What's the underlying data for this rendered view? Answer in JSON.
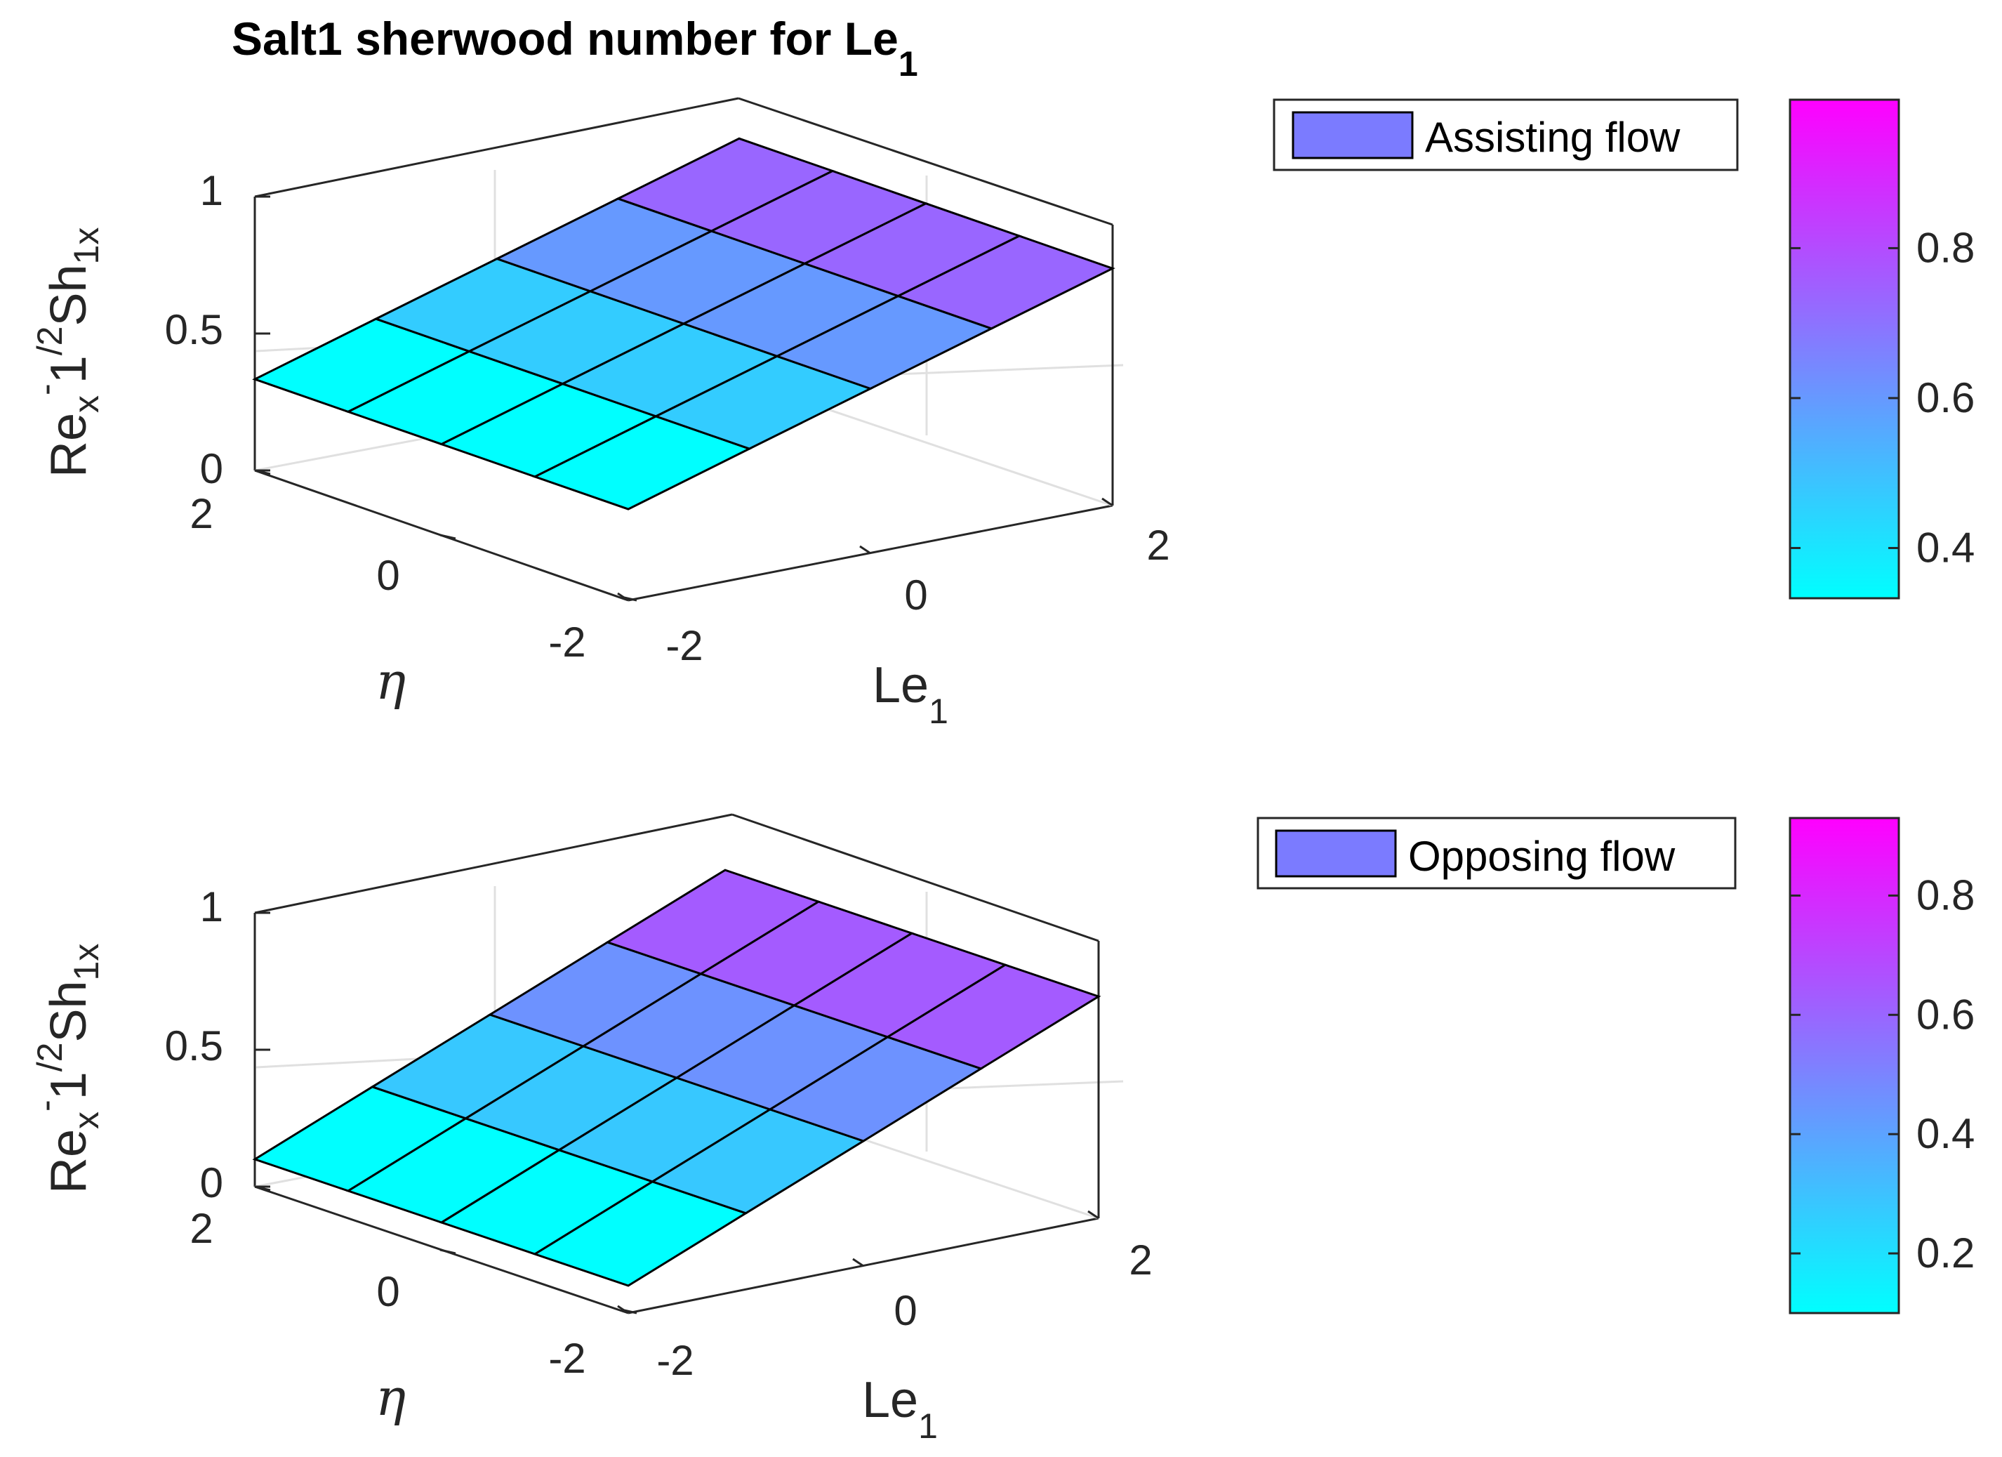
{
  "chart_data": [
    {
      "type": "surface",
      "title": "Salt1 sherwood number for Le",
      "title_sub": "1",
      "xlabel": "Le",
      "xlabel_sub": "1",
      "ylabel": "η",
      "zlabel": {
        "main": "Re",
        "sub1": "x",
        "sup": "-",
        "mid": "1",
        "sup2": "/2",
        "main2": "Sh",
        "sub2": "1x"
      },
      "x_ticks": [
        "-2",
        "0",
        "2"
      ],
      "y_ticks": [
        "2",
        "0",
        "-2"
      ],
      "z_ticks": [
        "0",
        "0.5",
        "1"
      ],
      "xlim": [
        -2,
        2
      ],
      "ylim": [
        -2,
        2
      ],
      "zlim": [
        0,
        1
      ],
      "x": [
        -2,
        -1,
        0,
        1,
        2
      ],
      "y": [
        -2,
        -1,
        0,
        1,
        2
      ],
      "z_at_x": [
        0.333,
        0.467,
        0.6,
        0.733,
        0.866
      ],
      "legend": {
        "label": "Assisting flow",
        "color": "#7B7BFF",
        "placement": "top-right-outside"
      },
      "colorbar": {
        "ticks": [
          "0.4",
          "0.6",
          "0.8"
        ],
        "tick_values": [
          0.4,
          0.6,
          0.8
        ],
        "range": [
          0.333,
          0.998
        ],
        "colormap": "cool"
      }
    },
    {
      "type": "surface",
      "title": "",
      "xlabel": "Le",
      "xlabel_sub": "1",
      "ylabel": "η",
      "zlabel": {
        "main": "Re",
        "sub1": "x",
        "sup": "-",
        "mid": "1",
        "sup2": "/2",
        "main2": "Sh",
        "sub2": "1x"
      },
      "x_ticks": [
        "-2",
        "0",
        "2"
      ],
      "y_ticks": [
        "2",
        "0",
        "-2"
      ],
      "z_ticks": [
        "0",
        "0.5",
        "1"
      ],
      "xlim": [
        -2,
        2
      ],
      "ylim": [
        -2,
        2
      ],
      "zlim": [
        0,
        1
      ],
      "x": [
        -2,
        -1,
        0,
        1,
        2
      ],
      "y": [
        -2,
        -1,
        0,
        1,
        2
      ],
      "z_at_x": [
        0.1,
        0.278,
        0.455,
        0.633,
        0.81
      ],
      "legend": {
        "label": "Opposing flow",
        "color": "#7B7BFF",
        "placement": "top-right-outside"
      },
      "colorbar": {
        "ticks": [
          "0.2",
          "0.4",
          "0.6",
          "0.8"
        ],
        "tick_values": [
          0.2,
          0.4,
          0.6,
          0.8
        ],
        "range": [
          0.1,
          0.93
        ],
        "colormap": "cool"
      }
    }
  ]
}
